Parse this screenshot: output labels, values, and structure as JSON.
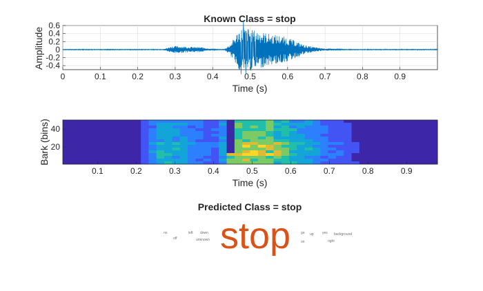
{
  "chart_data": [
    {
      "type": "line",
      "title": "Known Class = stop",
      "xlabel": "Time (s)",
      "ylabel": "Amplitude",
      "xlim": [
        0,
        1
      ],
      "ylim": [
        -0.5,
        0.6
      ],
      "xticks": [
        "0",
        "0.1",
        "0.2",
        "0.3",
        "0.4",
        "0.5",
        "0.6",
        "0.7",
        "0.8",
        "0.9"
      ],
      "xtick_values": [
        0,
        0.1,
        0.2,
        0.3,
        0.4,
        0.5,
        0.6,
        0.7,
        0.8,
        0.9
      ],
      "yticks": [
        "0.6",
        "0.4",
        "0.2",
        "0",
        "-0.2",
        "-0.4"
      ],
      "ytick_values": [
        0.6,
        0.4,
        0.2,
        0,
        -0.2,
        -0.4
      ],
      "grid": true,
      "series_color": "#0072BD",
      "envelope": {
        "times": [
          0,
          0.27,
          0.29,
          0.31,
          0.34,
          0.37,
          0.39,
          0.41,
          0.43,
          0.445,
          0.455,
          0.47,
          0.48,
          0.5,
          0.52,
          0.55,
          0.58,
          0.6,
          0.63,
          0.65,
          0.68,
          0.7,
          0.75,
          1.0
        ],
        "amplitudes": [
          0.01,
          0.01,
          0.09,
          0.09,
          0.07,
          0.06,
          0.03,
          0.01,
          0.01,
          0.12,
          0.25,
          0.5,
          0.55,
          0.5,
          0.48,
          0.4,
          0.35,
          0.3,
          0.18,
          0.1,
          0.05,
          0.03,
          0.01,
          0.01
        ]
      }
    },
    {
      "type": "heatmap",
      "xlabel": "Time (s)",
      "ylabel": "Bark (bins)",
      "xticks": [
        "0.1",
        "0.2",
        "0.3",
        "0.4",
        "0.5",
        "0.6",
        "0.7",
        "0.8",
        "0.9"
      ],
      "xtick_values": [
        0.1,
        0.2,
        0.3,
        0.4,
        0.5,
        0.6,
        0.7,
        0.8,
        0.9
      ],
      "yticks": [
        "40",
        "20"
      ],
      "ytick_values": [
        40,
        20
      ],
      "xlim": [
        0.01,
        0.98
      ],
      "ylim": [
        1,
        50
      ],
      "colormap": [
        "#3e26a8",
        "#4254f3",
        "#2c80fe",
        "#14a5d8",
        "#21bfa9",
        "#7bca66",
        "#dfba35",
        "#fcd727",
        "#f9fb15"
      ],
      "cols": 48,
      "rows": 16,
      "column_energy": [
        0.05,
        0.05,
        0.05,
        0.05,
        0.05,
        0.05,
        0.05,
        0.05,
        0.05,
        0.08,
        0.15,
        0.35,
        0.55,
        0.55,
        0.5,
        0.45,
        0.35,
        0.3,
        0.25,
        0.25,
        0.45,
        0.75,
        0.8,
        0.85,
        0.82,
        0.8,
        0.78,
        0.7,
        0.65,
        0.55,
        0.5,
        0.45,
        0.35,
        0.3,
        0.25,
        0.25,
        0.15,
        0.1,
        0.08,
        0.06,
        0.06,
        0.06,
        0.05,
        0.05,
        0.05,
        0.05,
        0.05,
        0.05
      ]
    },
    {
      "type": "wordcloud",
      "title": "Predicted Class = stop",
      "highlight_color": "#D95319",
      "words": [
        {
          "text": "no",
          "weight": 1
        },
        {
          "text": "off",
          "weight": 1
        },
        {
          "text": "left",
          "weight": 1
        },
        {
          "text": "down",
          "weight": 1
        },
        {
          "text": "unknown",
          "weight": 1
        },
        {
          "text": "stop",
          "weight": 100
        },
        {
          "text": "go",
          "weight": 1
        },
        {
          "text": "on",
          "weight": 1
        },
        {
          "text": "up",
          "weight": 1
        },
        {
          "text": "yes",
          "weight": 1
        },
        {
          "text": "right",
          "weight": 1
        },
        {
          "text": "background",
          "weight": 1
        }
      ]
    }
  ]
}
